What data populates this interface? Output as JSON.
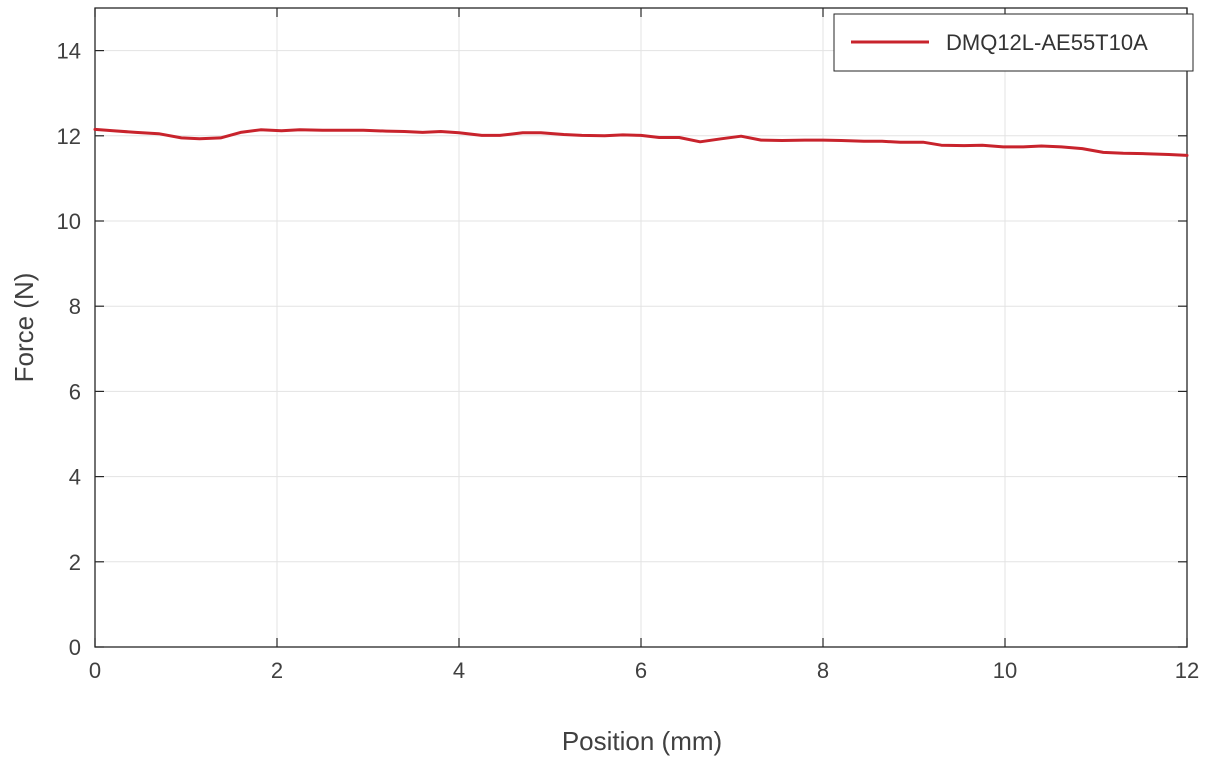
{
  "chart_data": {
    "type": "line",
    "title": "",
    "xlabel": "Position (mm)",
    "ylabel": "Force (N)",
    "xlim": [
      0,
      12
    ],
    "ylim": [
      0,
      15
    ],
    "xticks": [
      0,
      2,
      4,
      6,
      8,
      10,
      12
    ],
    "yticks": [
      0,
      2,
      4,
      6,
      8,
      10,
      12,
      14
    ],
    "xtick_labels": [
      "0",
      "2",
      "4",
      "6",
      "8",
      "10",
      "12"
    ],
    "ytick_labels": [
      "0",
      "2",
      "4",
      "6",
      "8",
      "10",
      "12",
      "14"
    ],
    "grid": true,
    "legend_position": "top-right",
    "series": [
      {
        "name": "DMQ12L-AE55T10A",
        "color": "#c8232c",
        "x": [
          0,
          0.2,
          0.45,
          0.7,
          0.95,
          1.15,
          1.38,
          1.6,
          1.82,
          2.05,
          2.25,
          2.5,
          2.75,
          2.95,
          3.2,
          3.4,
          3.6,
          3.8,
          4.0,
          4.25,
          4.45,
          4.7,
          4.9,
          5.15,
          5.35,
          5.6,
          5.8,
          6.0,
          6.2,
          6.42,
          6.65,
          6.88,
          7.1,
          7.32,
          7.55,
          7.8,
          8.0,
          8.2,
          8.45,
          8.65,
          8.85,
          9.1,
          9.3,
          9.55,
          9.75,
          9.98,
          10.2,
          10.4,
          10.62,
          10.85,
          11.08,
          11.3,
          11.55,
          11.8,
          12.0
        ],
        "y": [
          12.15,
          12.12,
          12.08,
          12.05,
          11.95,
          11.93,
          11.95,
          12.08,
          12.14,
          12.12,
          12.14,
          12.13,
          12.13,
          12.13,
          12.11,
          12.1,
          12.08,
          12.1,
          12.07,
          12.01,
          12.01,
          12.07,
          12.07,
          12.03,
          12.01,
          12.0,
          12.02,
          12.01,
          11.96,
          11.96,
          11.86,
          11.93,
          11.99,
          11.9,
          11.89,
          11.9,
          11.9,
          11.89,
          11.87,
          11.87,
          11.85,
          11.85,
          11.78,
          11.77,
          11.78,
          11.74,
          11.74,
          11.76,
          11.74,
          11.7,
          11.61,
          11.59,
          11.58,
          11.56,
          11.54
        ]
      }
    ]
  }
}
